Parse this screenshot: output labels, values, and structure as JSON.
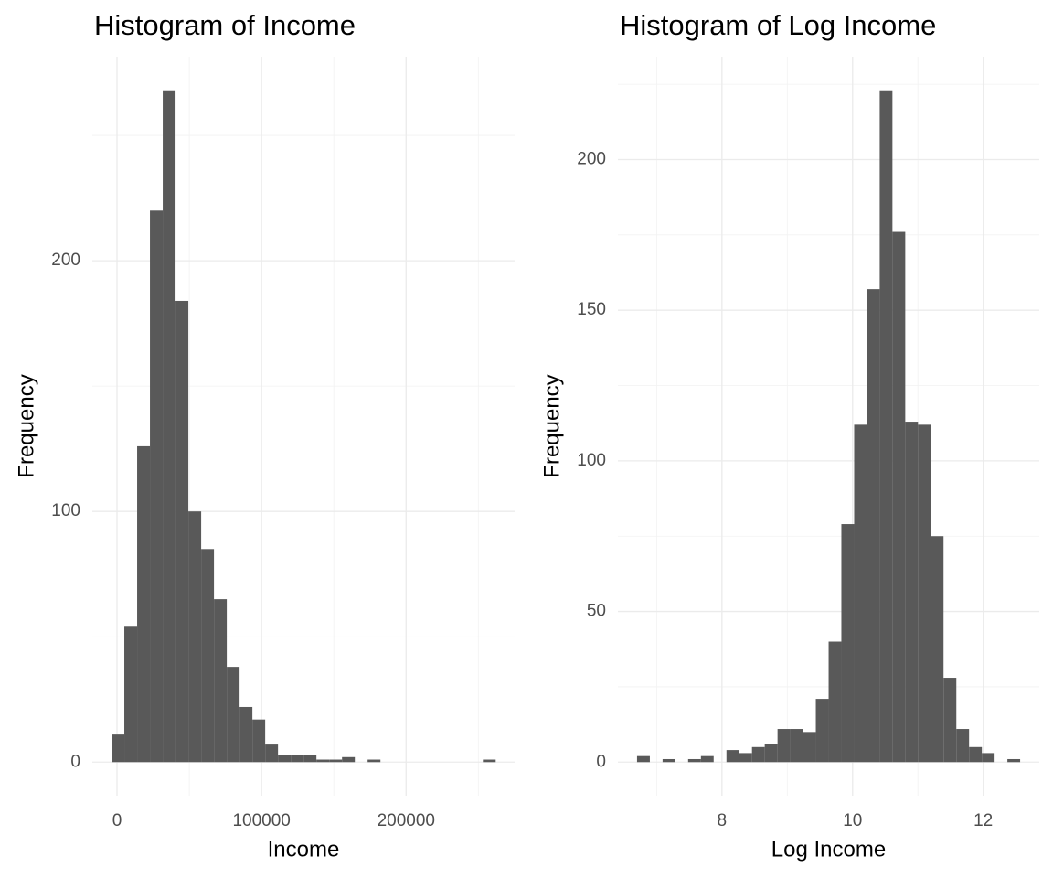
{
  "chart_data": [
    {
      "type": "histogram",
      "title": "Histogram of Income",
      "x_label": "Income",
      "y_label": "Frequency",
      "bins": [
        -3800,
        5060,
        13920,
        22780,
        31640,
        40500,
        49360,
        58220,
        67080,
        75940,
        84800,
        93660,
        102520,
        111380,
        120240,
        129100,
        137960,
        146820,
        155680,
        164540,
        173400,
        182260,
        191120,
        199980,
        208840,
        217700,
        226560,
        235420,
        244280,
        253140,
        262000
      ],
      "counts": [
        11,
        54,
        126,
        220,
        268,
        184,
        100,
        85,
        65,
        38,
        22,
        17,
        7,
        3,
        3,
        3,
        1,
        1,
        2,
        0,
        1,
        0,
        0,
        0,
        0,
        0,
        0,
        0,
        0,
        1
      ],
      "color": "#595959",
      "xlim": [
        -17090,
        275090
      ],
      "xticks": [
        0,
        100000,
        200000
      ],
      "xminor": [
        50000,
        150000,
        250000
      ],
      "ylim": [
        -13.4,
        281.4
      ],
      "yticks": [
        0,
        100,
        200
      ],
      "yminor": [
        50,
        150,
        250
      ],
      "grid": true
    },
    {
      "type": "histogram",
      "title": "Histogram of Log Income",
      "x_label": "Log Income",
      "y_label": "Frequency",
      "bins": [
        6.7,
        6.896,
        7.091,
        7.287,
        7.482,
        7.678,
        7.873,
        8.069,
        8.264,
        8.46,
        8.655,
        8.851,
        9.046,
        9.242,
        9.437,
        9.633,
        9.828,
        10.024,
        10.219,
        10.415,
        10.61,
        10.806,
        11.001,
        11.197,
        11.392,
        11.588,
        11.783,
        11.979,
        12.174,
        12.37,
        12.565
      ],
      "counts": [
        2,
        0,
        1,
        0,
        1,
        2,
        0,
        4,
        3,
        5,
        6,
        11,
        11,
        10,
        21,
        40,
        79,
        112,
        157,
        223,
        176,
        113,
        112,
        75,
        28,
        11,
        5,
        3,
        0,
        1
      ],
      "color": "#595959",
      "xlim": [
        6.407,
        12.858
      ],
      "xticks": [
        8,
        10,
        12
      ],
      "xminor": [
        7,
        9,
        11
      ],
      "ylim": [
        -11.15,
        234.15
      ],
      "yticks": [
        0,
        50,
        100,
        150,
        200
      ],
      "yminor": [
        25,
        75,
        125,
        175,
        225
      ],
      "grid": true
    }
  ]
}
